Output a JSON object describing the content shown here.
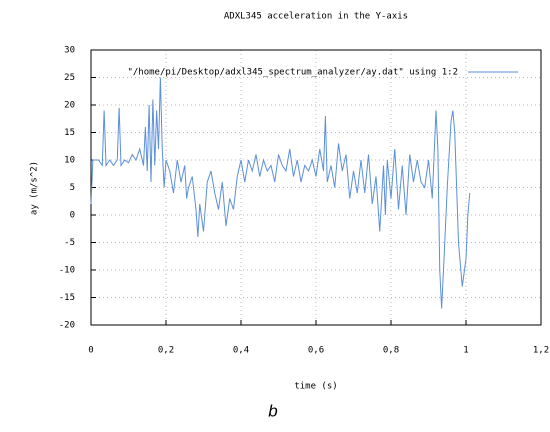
{
  "chart_data": {
    "type": "line",
    "title": "ADXL345 acceleration in the Y-axis",
    "x_label": "time (s)",
    "y_label": "ay (m/s^2)",
    "caption": "b",
    "xlim": [
      0,
      1.2
    ],
    "ylim": [
      -20,
      30
    ],
    "xticks": [
      0,
      {
        "value": 0.2,
        "label": "0,2"
      },
      {
        "value": 0.4,
        "label": "0,4"
      },
      {
        "value": 0.6,
        "label": "0,6"
      },
      {
        "value": 0.8,
        "label": "0,8"
      },
      1,
      {
        "value": 1.2,
        "label": "1,2"
      }
    ],
    "yticks": [
      -20,
      -15,
      -10,
      -5,
      0,
      5,
      10,
      15,
      20,
      25,
      30
    ],
    "grid": true,
    "legend": "top-right",
    "series": [
      {
        "name": "\"/home/pi/Desktop/adxl345_spectrum_analyzer/ay.dat\" using 1:2",
        "color": "#5b8fd8",
        "x": [
          0,
          0.005,
          0.02,
          0.03,
          0.035,
          0.04,
          0.05,
          0.06,
          0.07,
          0.075,
          0.08,
          0.09,
          0.1,
          0.11,
          0.12,
          0.13,
          0.14,
          0.145,
          0.15,
          0.155,
          0.16,
          0.165,
          0.17,
          0.175,
          0.18,
          0.185,
          0.19,
          0.195,
          0.2,
          0.21,
          0.22,
          0.23,
          0.24,
          0.25,
          0.255,
          0.26,
          0.27,
          0.28,
          0.285,
          0.29,
          0.3,
          0.31,
          0.32,
          0.33,
          0.34,
          0.35,
          0.36,
          0.37,
          0.38,
          0.39,
          0.4,
          0.41,
          0.42,
          0.43,
          0.44,
          0.45,
          0.46,
          0.47,
          0.48,
          0.49,
          0.5,
          0.51,
          0.52,
          0.53,
          0.54,
          0.55,
          0.56,
          0.57,
          0.58,
          0.59,
          0.6,
          0.61,
          0.62,
          0.625,
          0.63,
          0.64,
          0.65,
          0.66,
          0.67,
          0.68,
          0.69,
          0.7,
          0.71,
          0.72,
          0.73,
          0.74,
          0.75,
          0.76,
          0.77,
          0.78,
          0.785,
          0.79,
          0.8,
          0.81,
          0.82,
          0.83,
          0.84,
          0.85,
          0.86,
          0.87,
          0.88,
          0.89,
          0.9,
          0.91,
          0.92,
          0.925,
          0.93,
          0.935,
          0.94,
          0.95,
          0.96,
          0.965,
          0.97,
          0.98,
          0.99,
          1.0,
          1.005,
          1.01
        ],
        "values": [
          2,
          10,
          10,
          9,
          19,
          9,
          10,
          9,
          10,
          19.5,
          9,
          10,
          9.5,
          11,
          10,
          12,
          9,
          16,
          8,
          20,
          6,
          21,
          9,
          19,
          12,
          25,
          12,
          5,
          10,
          8,
          4,
          10,
          6,
          9,
          3,
          5,
          7,
          1,
          -4,
          2,
          -3,
          6,
          8,
          4,
          1,
          6,
          -2,
          3,
          1,
          7,
          10,
          6,
          10,
          8,
          11,
          7,
          10,
          8,
          9,
          6,
          11,
          9,
          8,
          12,
          7,
          10,
          6,
          9,
          8,
          10,
          7,
          12,
          8,
          18,
          6,
          9,
          5,
          13,
          8,
          11,
          3,
          8,
          4,
          10,
          4,
          11,
          2,
          7,
          -3,
          9,
          0,
          10,
          3,
          12,
          1,
          9,
          0,
          11,
          6,
          10,
          6,
          5,
          10,
          3,
          19,
          12,
          -10,
          -17,
          -10,
          5,
          17,
          19,
          15,
          -5,
          -13,
          -8,
          0,
          4
        ]
      }
    ]
  }
}
